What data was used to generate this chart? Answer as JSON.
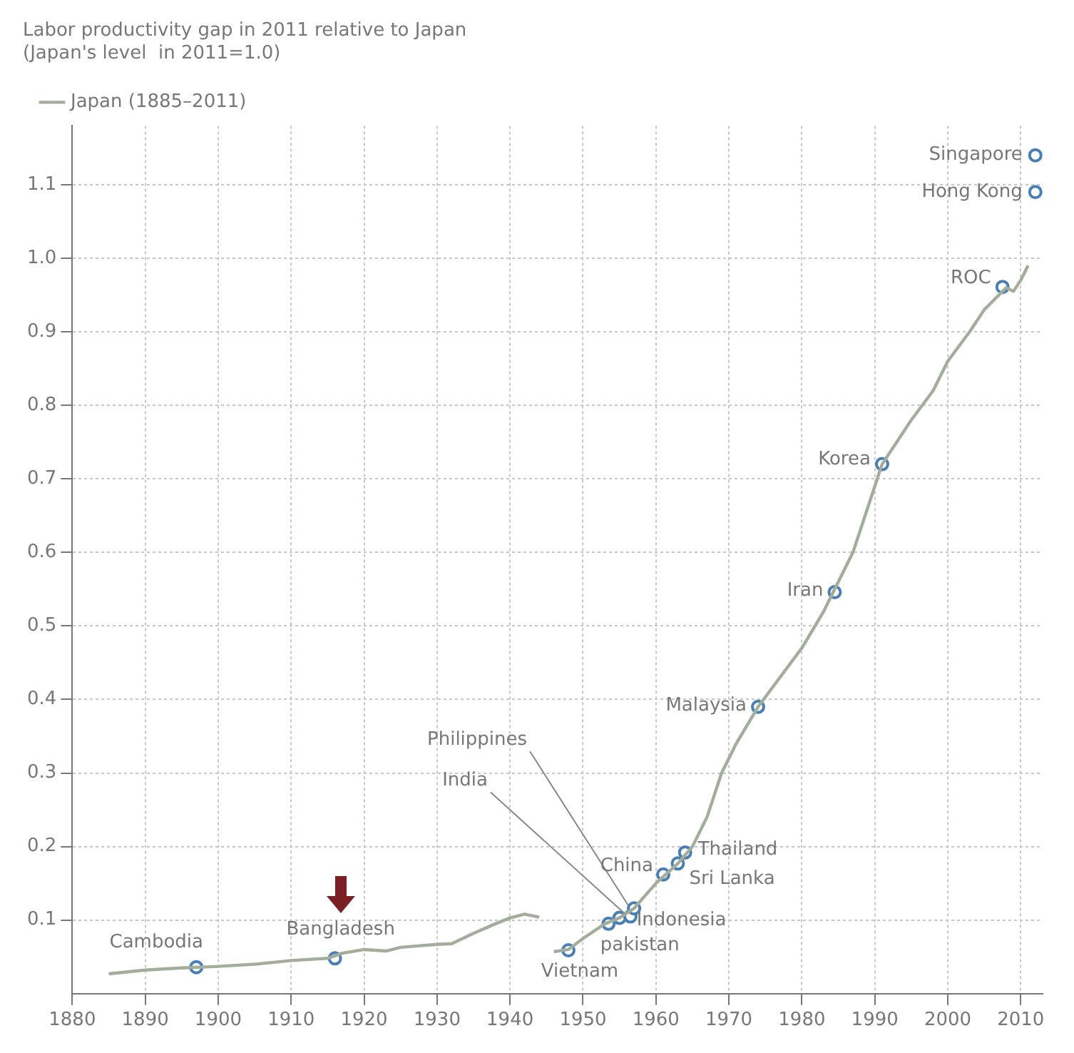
{
  "chart_data": {
    "type": "line",
    "title": "Labor productivity gap in 2011 relative to Japan",
    "subtitle": "(Japan's level  in 2011=1.0)",
    "series": [
      {
        "name": "Japan (1885–2011)",
        "color": "#a3ad9b",
        "x": [
          1885,
          1890,
          1895,
          1900,
          1905,
          1910,
          1915,
          1917,
          1920,
          1923,
          1925,
          1930,
          1932,
          1935,
          1938,
          1940,
          1942,
          1944,
          1945,
          1946,
          1948,
          1950,
          1953,
          1955,
          1957,
          1960,
          1963,
          1965,
          1967,
          1969,
          1971,
          1974,
          1977,
          1980,
          1983,
          1985,
          1987,
          1989,
          1991,
          1993,
          1995,
          1998,
          2000,
          2003,
          2005,
          2008,
          2009,
          2010,
          2011
        ],
        "values": [
          0.027,
          0.032,
          0.035,
          0.037,
          0.04,
          0.045,
          0.048,
          0.055,
          0.06,
          0.058,
          0.063,
          0.067,
          0.068,
          0.082,
          0.095,
          0.103,
          0.108,
          0.104,
          null,
          0.057,
          0.06,
          0.075,
          0.095,
          0.103,
          0.116,
          0.15,
          0.177,
          0.2,
          0.24,
          0.3,
          0.34,
          0.39,
          0.43,
          0.47,
          0.52,
          0.56,
          0.6,
          0.66,
          0.72,
          0.75,
          0.78,
          0.82,
          0.86,
          0.9,
          0.93,
          0.96,
          0.955,
          0.97,
          0.99
        ]
      },
      {
        "type": "scatter",
        "color": "#4a7fb5",
        "marker": "circle",
        "x": [
          1897,
          1916,
          1948,
          1953.5,
          1955,
          1956.5,
          1957,
          1961,
          1963,
          1964,
          1974,
          1984.5,
          1991,
          2007.5,
          2012,
          2012
        ],
        "values": [
          0.036,
          0.048,
          0.059,
          0.095,
          0.103,
          0.105,
          0.116,
          0.162,
          0.177,
          0.192,
          0.39,
          0.546,
          0.72,
          0.961,
          1.09,
          1.14
        ]
      }
    ],
    "annotations": [
      {
        "text": "Cambodia",
        "x": 1897,
        "y": 0.036
      },
      {
        "text": "Bangladesh",
        "x": 1916,
        "y": 0.048
      },
      {
        "text": "Vietnam",
        "x": 1948,
        "y": 0.059
      },
      {
        "text": "pakistan",
        "x": 1953.5,
        "y": 0.095
      },
      {
        "text": "Indonesia",
        "x": 1955,
        "y": 0.103
      },
      {
        "text": "India",
        "x": 1956.5,
        "y": 0.105
      },
      {
        "text": "Philippines",
        "x": 1957,
        "y": 0.116
      },
      {
        "text": "China",
        "x": 1961,
        "y": 0.162
      },
      {
        "text": "Sri Lanka",
        "x": 1963,
        "y": 0.177
      },
      {
        "text": "Thailand",
        "x": 1964,
        "y": 0.192
      },
      {
        "text": "Malaysia",
        "x": 1974,
        "y": 0.39
      },
      {
        "text": "Iran",
        "x": 1984.5,
        "y": 0.546
      },
      {
        "text": "Korea",
        "x": 1991,
        "y": 0.72
      },
      {
        "text": "ROC",
        "x": 2007.5,
        "y": 0.961
      },
      {
        "text": "Hong Kong",
        "x": 2012,
        "y": 1.09
      },
      {
        "text": "Singapore",
        "x": 2012,
        "y": 1.14
      }
    ],
    "xlim": [
      1880,
      2013
    ],
    "xticks": [
      1880,
      1890,
      1900,
      1910,
      1920,
      1930,
      1940,
      1950,
      1960,
      1970,
      1980,
      1990,
      2000,
      2010
    ],
    "ylim": [
      0,
      1.18
    ],
    "yticks": [
      0.1,
      0.2,
      0.3,
      0.4,
      0.5,
      0.6,
      0.7,
      0.8,
      0.9,
      {
        "value": 1,
        "label": "1.0"
      },
      1.1
    ],
    "grid": true,
    "legend": "top left",
    "line_style": "solid"
  }
}
